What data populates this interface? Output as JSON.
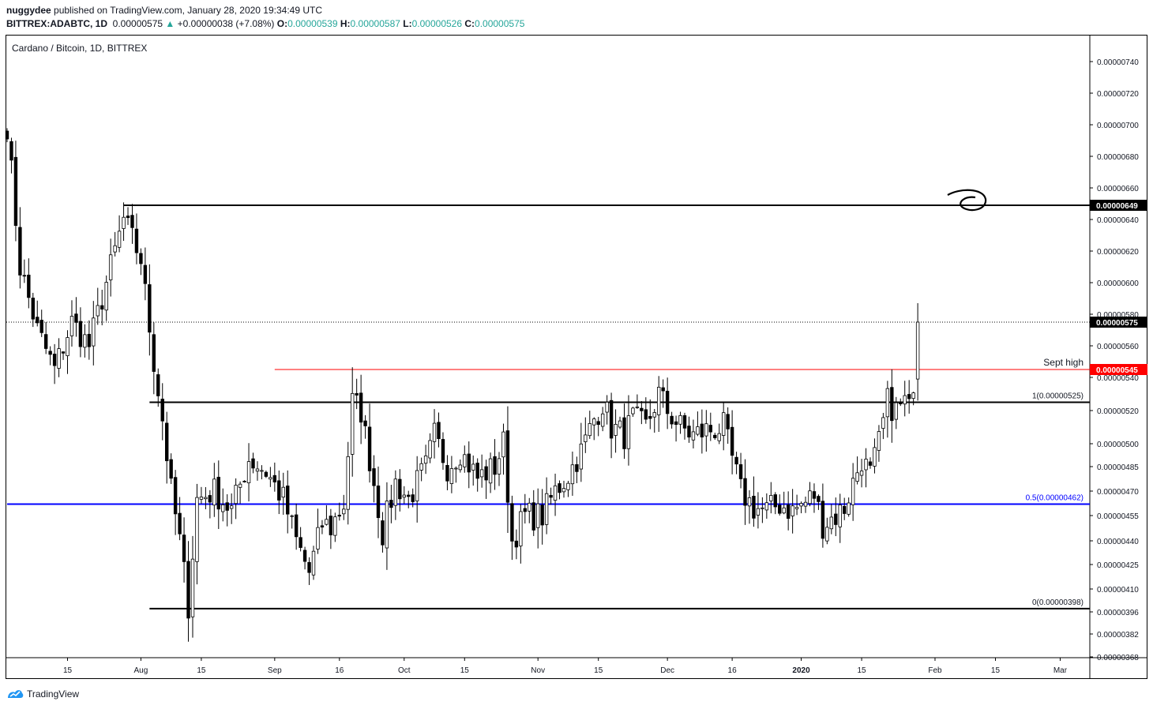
{
  "header": {
    "author": "nuggydee",
    "published": "published on TradingView.com, January 28, 2020 19:34:49 UTC",
    "symbol": "BITTREX:ADABTC, 1D",
    "last": "0.00000575",
    "change": "+0.00000038 (+7.08%)",
    "o_label": "O:",
    "o_value": "0.00000539",
    "h_label": "H:",
    "h_value": "0.00000587",
    "l_label": "L:",
    "l_value": "0.00000526",
    "c_label": "C:",
    "c_value": "0.00000575"
  },
  "legend": "Cardano / Bitcoin, 1D, BITTREX",
  "brand": "TradingView",
  "colors": {
    "up": "#26a69a",
    "line_black": "#000000",
    "fib_blue": "#0000ff",
    "sept_red": "#ff0000"
  },
  "chart_data": {
    "type": "candlestick",
    "title": "Cardano / Bitcoin, 1D, BITTREX",
    "y_unit": "BTC",
    "ylim": [
      3.68e-06,
      7.5e-06
    ],
    "y_ticks": [
      "0.00000740",
      "0.00000720",
      "0.00000700",
      "0.00000680",
      "0.00000660",
      "0.00000640",
      "0.00000620",
      "0.00000600",
      "0.00000580",
      "0.00000560",
      "0.00000540",
      "0.00000520",
      "0.00000500",
      "0.00000485",
      "0.00000470",
      "0.00000455",
      "0.00000440",
      "0.00000425",
      "0.00000410",
      "0.00000396",
      "0.00000382",
      "0.00000368"
    ],
    "x_ticks": [
      "15",
      "Aug",
      "15",
      "Sep",
      "16",
      "Oct",
      "15",
      "Nov",
      "15",
      "Dec",
      "16",
      "2020",
      "15",
      "Feb",
      "15",
      "Mar"
    ],
    "price_labels": [
      {
        "value": 6.49e-06,
        "text": "0.00000649",
        "style": "black"
      },
      {
        "value": 5.75e-06,
        "text": "0.00000575",
        "style": "black"
      },
      {
        "value": 5.45e-06,
        "text": "0.00000545",
        "style": "red"
      }
    ],
    "horizontal_lines": [
      {
        "name": "resistance",
        "value": 6.49e-06,
        "color": "#000000",
        "from_date": "2019-07-28"
      },
      {
        "name": "sept-high",
        "value": 5.45e-06,
        "color": "#ff0000",
        "label": "Sept high",
        "from_date": "2019-09-01"
      },
      {
        "name": "fib-1",
        "value": 5.25e-06,
        "color": "#000000",
        "label": "1(0.00000525)",
        "from_date": "2019-08-03"
      },
      {
        "name": "fib-0.5",
        "value": 4.62e-06,
        "color": "#0000ff",
        "label": "0.5(0.00000462)",
        "from_date": "2019-07-01"
      },
      {
        "name": "fib-0",
        "value": 3.98e-06,
        "color": "#000000",
        "label": "0(0.00000398)",
        "from_date": "2019-08-03"
      }
    ],
    "current_price_line": 5.75e-06,
    "anchors": [
      [
        "2019-07-01",
        7e-06
      ],
      [
        "2019-07-04",
        6.1e-06
      ],
      [
        "2019-07-08",
        5.7e-06
      ],
      [
        "2019-07-12",
        5.45e-06
      ],
      [
        "2019-07-16",
        5.75e-06
      ],
      [
        "2019-07-20",
        5.6e-06
      ],
      [
        "2019-07-24",
        6e-06
      ],
      [
        "2019-07-28",
        6.4e-06
      ],
      [
        "2019-08-01",
        6.15e-06
      ],
      [
        "2019-08-04",
        5.5e-06
      ],
      [
        "2019-08-06",
        5.15e-06
      ],
      [
        "2019-08-08",
        4.7e-06
      ],
      [
        "2019-08-10",
        4.4e-06
      ],
      [
        "2019-08-12",
        4e-06
      ],
      [
        "2019-08-14",
        4.65e-06
      ],
      [
        "2019-08-18",
        4.7e-06
      ],
      [
        "2019-08-22",
        4.58e-06
      ],
      [
        "2019-08-26",
        4.9e-06
      ],
      [
        "2019-08-30",
        4.82e-06
      ],
      [
        "2019-09-03",
        4.65e-06
      ],
      [
        "2019-09-06",
        4.4e-06
      ],
      [
        "2019-09-09",
        4.2e-06
      ],
      [
        "2019-09-12",
        4.5e-06
      ],
      [
        "2019-09-14",
        4.48e-06
      ],
      [
        "2019-09-17",
        4.62e-06
      ],
      [
        "2019-09-19",
        5.25e-06
      ],
      [
        "2019-09-21",
        5.2e-06
      ],
      [
        "2019-09-23",
        4.9e-06
      ],
      [
        "2019-09-26",
        4.45e-06
      ],
      [
        "2019-09-29",
        4.75e-06
      ],
      [
        "2019-10-02",
        4.65e-06
      ],
      [
        "2019-10-06",
        4.85e-06
      ],
      [
        "2019-10-08",
        5.05e-06
      ],
      [
        "2019-10-11",
        4.85e-06
      ],
      [
        "2019-10-14",
        4.95e-06
      ],
      [
        "2019-10-18",
        4.78e-06
      ],
      [
        "2019-10-22",
        4.85e-06
      ],
      [
        "2019-10-24",
        5e-06
      ],
      [
        "2019-10-26",
        4.4e-06
      ],
      [
        "2019-10-29",
        4.55e-06
      ],
      [
        "2019-11-02",
        4.55e-06
      ],
      [
        "2019-11-05",
        4.7e-06
      ],
      [
        "2019-11-08",
        4.8e-06
      ],
      [
        "2019-11-11",
        4.95e-06
      ],
      [
        "2019-11-14",
        5.15e-06
      ],
      [
        "2019-11-16",
        5.25e-06
      ],
      [
        "2019-11-18",
        5.1e-06
      ],
      [
        "2019-11-21",
        5.05e-06
      ],
      [
        "2019-11-23",
        5.15e-06
      ],
      [
        "2019-11-26",
        5.1e-06
      ],
      [
        "2019-11-29",
        5.3e-06
      ],
      [
        "2019-12-01",
        5.2e-06
      ],
      [
        "2019-12-04",
        5.1e-06
      ],
      [
        "2019-12-07",
        5.05e-06
      ],
      [
        "2019-12-10",
        5.08e-06
      ],
      [
        "2019-12-14",
        5.1e-06
      ],
      [
        "2019-12-16",
        4.9e-06
      ],
      [
        "2019-12-18",
        4.7e-06
      ],
      [
        "2019-12-21",
        4.6e-06
      ],
      [
        "2019-12-24",
        4.58e-06
      ],
      [
        "2019-12-27",
        4.62e-06
      ],
      [
        "2019-12-30",
        4.58e-06
      ],
      [
        "2020-01-02",
        4.63e-06
      ],
      [
        "2020-01-04",
        4.68e-06
      ],
      [
        "2020-01-06",
        4.5e-06
      ],
      [
        "2020-01-09",
        4.55e-06
      ],
      [
        "2020-01-11",
        4.6e-06
      ],
      [
        "2020-01-13",
        4.75e-06
      ],
      [
        "2020-01-15",
        4.9e-06
      ],
      [
        "2020-01-17",
        4.8e-06
      ],
      [
        "2020-01-19",
        5e-06
      ],
      [
        "2020-01-21",
        5.25e-06
      ],
      [
        "2020-01-23",
        5.2e-06
      ],
      [
        "2020-01-25",
        5.25e-06
      ],
      [
        "2020-01-26",
        5.2e-06
      ],
      [
        "2020-01-27",
        5.39e-06
      ],
      [
        "2020-01-28",
        5.75e-06
      ]
    ],
    "last_candle": {
      "date": "2020-01-28",
      "open": 5.39e-06,
      "high": 5.87e-06,
      "low": 5.26e-06,
      "close": 5.75e-06
    },
    "x_range": [
      "2019-07-01",
      "2020-03-08"
    ]
  }
}
